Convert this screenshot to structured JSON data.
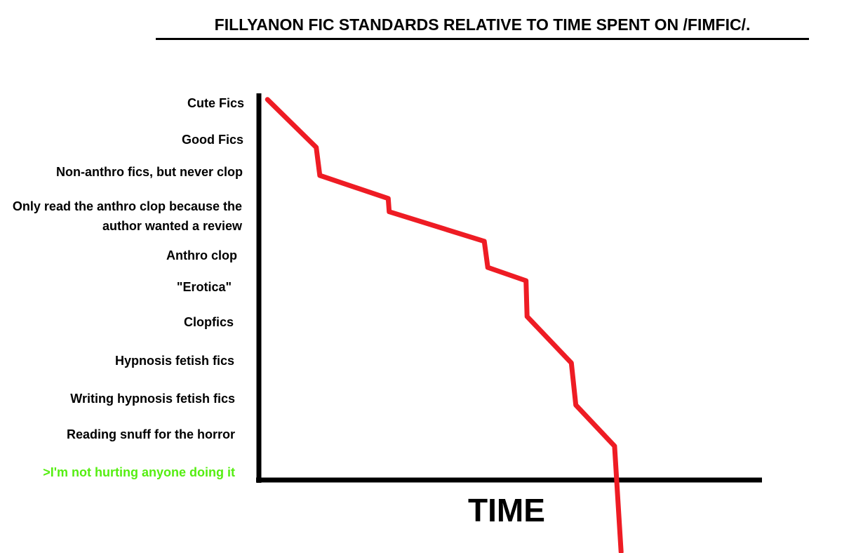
{
  "chart_data": {
    "type": "line",
    "title": "FILLYANON FIC STANDARDS RELATIVE TO TIME SPENT ON /FIMFIC/.",
    "xlabel": "TIME",
    "ylabel": "",
    "y_categories": [
      "Cute Fics",
      "Good Fics",
      "Non-anthro fics, but never clop",
      "Only read the anthro clop because the author wanted a review",
      "Anthro clop",
      "\"Erotica\"",
      "Clopfics",
      "Hypnosis fetish fics",
      "Writing hypnosis fetish fics",
      "Reading snuff for the horror",
      ">I'm not hurting anyone doing it"
    ],
    "highlight_category_color": "#55ee11",
    "line_color": "#ee1c24",
    "axis_color": "#000000",
    "grid": false,
    "legend": "none",
    "series": [
      {
        "x": [
          1.7,
          11.4,
          12.1,
          25.7,
          25.9,
          44.8,
          45.5,
          53.1,
          53.3,
          62.1,
          63.0,
          70.7,
          72.0
        ],
        "y_level": [
          -0.1,
          1.24,
          2.08,
          2.6,
          2.9,
          3.64,
          4.38,
          4.8,
          5.84,
          7.06,
          8.18,
          9.31,
          12.1
        ]
      }
    ]
  }
}
